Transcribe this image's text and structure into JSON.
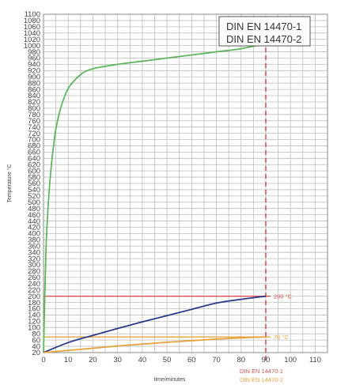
{
  "chart_data": {
    "type": "line",
    "title": "",
    "xlabel": "time/minutes",
    "ylabel": "Temperature °C",
    "xlim": [
      0,
      115
    ],
    "ylim": [
      20,
      1100
    ],
    "x_ticks": [
      0,
      10,
      20,
      30,
      40,
      50,
      60,
      70,
      80,
      90,
      100,
      110
    ],
    "y_ticks": [
      20,
      40,
      60,
      80,
      100,
      120,
      140,
      160,
      180,
      200,
      220,
      240,
      260,
      280,
      300,
      320,
      340,
      360,
      380,
      400,
      420,
      440,
      460,
      480,
      500,
      520,
      540,
      560,
      580,
      600,
      620,
      640,
      660,
      680,
      700,
      720,
      740,
      760,
      780,
      800,
      820,
      840,
      860,
      880,
      900,
      920,
      940,
      960,
      980,
      1000,
      1020,
      1040,
      1060,
      1080,
      1100
    ],
    "grid": true,
    "series": [
      {
        "name": "",
        "color": "#5cb85c",
        "x": [
          0,
          1,
          2,
          3,
          4,
          5,
          7,
          10,
          15,
          20,
          30,
          40,
          50,
          60,
          70,
          80,
          90
        ],
        "y": [
          20,
          349,
          502,
          603,
          676,
          733,
          802,
          863,
          907,
          926,
          940,
          950,
          960,
          970,
          980,
          990,
          1006
        ]
      },
      {
        "name": "",
        "color": "#2a3a8c",
        "x": [
          0,
          10,
          20,
          30,
          40,
          50,
          60,
          70,
          80,
          90
        ],
        "y": [
          20,
          52,
          75,
          97,
          118,
          138,
          158,
          178,
          190,
          200
        ]
      },
      {
        "name": "",
        "color": "#e8a33d",
        "x": [
          0,
          10,
          20,
          30,
          40,
          50,
          60,
          70,
          80,
          90
        ],
        "y": [
          20,
          27,
          34,
          41,
          47,
          53,
          58,
          63,
          67,
          70
        ]
      }
    ],
    "reference_lines": [
      {
        "axis": "y",
        "value": 200,
        "color": "#d9534f",
        "label": "200 °C"
      },
      {
        "axis": "y",
        "value": 70,
        "color": "#e8a33d",
        "label": "70 °C"
      },
      {
        "axis": "x",
        "value": 90,
        "color": "#d9534f",
        "dashed": true
      }
    ],
    "annotations": {
      "legend_box": [
        "DIN EN 14470-1",
        "DIN EN 14470-2"
      ],
      "bottom_labels": [
        {
          "text": "DIN EN 14470-1",
          "color": "#d9534f"
        },
        {
          "text": "DIN EN 14470-2",
          "color": "#e8a33d"
        }
      ],
      "x90_label": "90"
    }
  }
}
